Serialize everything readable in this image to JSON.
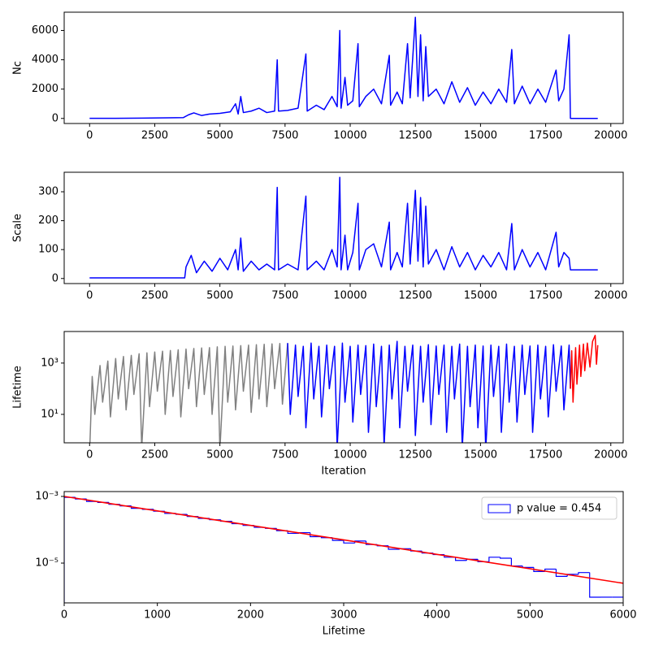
{
  "chart_data": [
    {
      "type": "line",
      "ylabel": "Nc",
      "xlim": [
        -975,
        20475
      ],
      "xticks": [
        0,
        2500,
        5000,
        7500,
        10000,
        12500,
        15000,
        17500,
        20000
      ],
      "ylim": [
        -345,
        7245
      ],
      "yticks": [
        0,
        2000,
        4000,
        6000
      ],
      "series": [
        {
          "color": "#0000ff",
          "x": [
            0,
            1000,
            2000,
            3000,
            3600,
            3800,
            4000,
            4300,
            4600,
            5000,
            5400,
            5600,
            5700,
            5800,
            5900,
            6200,
            6500,
            6800,
            7100,
            7200,
            7250,
            7600,
            8000,
            8300,
            8350,
            8700,
            9000,
            9300,
            9500,
            9600,
            9650,
            9800,
            9900,
            10100,
            10300,
            10350,
            10600,
            10900,
            11200,
            11500,
            11550,
            11800,
            12000,
            12200,
            12300,
            12500,
            12600,
            12700,
            12800,
            12900,
            13000,
            13300,
            13600,
            13900,
            14200,
            14500,
            14800,
            15100,
            15400,
            15700,
            16000,
            16200,
            16300,
            16600,
            16900,
            17200,
            17500,
            17900,
            18000,
            18200,
            18400,
            18450,
            19500
          ],
          "values": [
            5,
            10,
            20,
            40,
            60,
            250,
            380,
            200,
            300,
            350,
            450,
            1000,
            300,
            1500,
            400,
            500,
            700,
            400,
            500,
            4000,
            500,
            550,
            700,
            4400,
            500,
            900,
            600,
            1500,
            800,
            6000,
            700,
            2800,
            900,
            1200,
            5100,
            800,
            1500,
            2000,
            1000,
            4300,
            900,
            1800,
            1000,
            5100,
            1400,
            6900,
            1500,
            5700,
            1200,
            4900,
            1500,
            2000,
            1000,
            2500,
            1100,
            2100,
            900,
            1800,
            1000,
            2000,
            1100,
            4700,
            1000,
            2200,
            1000,
            2000,
            1100,
            3300,
            1200,
            2000,
            5700,
            0,
            0
          ]
        }
      ]
    },
    {
      "type": "line",
      "ylabel": "Scale",
      "xlim": [
        -975,
        20475
      ],
      "xticks": [
        0,
        2500,
        5000,
        7500,
        10000,
        12500,
        15000,
        17500,
        20000
      ],
      "ylim": [
        -17.5,
        367.5
      ],
      "yticks": [
        0,
        100,
        200,
        300
      ],
      "series": [
        {
          "color": "#0000ff",
          "x": [
            0,
            3650,
            3700,
            3900,
            4100,
            4400,
            4700,
            5000,
            5300,
            5600,
            5700,
            5800,
            5900,
            6200,
            6500,
            6800,
            7100,
            7200,
            7250,
            7600,
            8000,
            8300,
            8350,
            8700,
            9000,
            9300,
            9500,
            9600,
            9650,
            9800,
            9900,
            10100,
            10300,
            10350,
            10600,
            10900,
            11200,
            11500,
            11550,
            11800,
            12000,
            12200,
            12300,
            12500,
            12600,
            12700,
            12800,
            12900,
            13000,
            13300,
            13600,
            13900,
            14200,
            14500,
            14800,
            15100,
            15400,
            15700,
            16000,
            16200,
            16300,
            16600,
            16900,
            17200,
            17500,
            17900,
            18000,
            18200,
            18400,
            18450,
            19500
          ],
          "values": [
            2,
            2,
            40,
            80,
            20,
            60,
            25,
            70,
            30,
            100,
            30,
            140,
            25,
            60,
            30,
            50,
            30,
            315,
            30,
            50,
            30,
            285,
            30,
            60,
            30,
            100,
            40,
            350,
            30,
            150,
            30,
            90,
            260,
            30,
            100,
            120,
            40,
            195,
            30,
            90,
            40,
            260,
            50,
            305,
            60,
            280,
            40,
            250,
            50,
            100,
            30,
            110,
            40,
            90,
            30,
            80,
            40,
            90,
            30,
            190,
            30,
            100,
            40,
            90,
            30,
            160,
            40,
            90,
            70,
            30,
            30
          ]
        }
      ]
    },
    {
      "type": "line",
      "ylabel": "Lifetime",
      "xlabel": "Iteration",
      "ylog": true,
      "xlim": [
        -975,
        20475
      ],
      "xticks": [
        0,
        2500,
        5000,
        7500,
        10000,
        12500,
        15000,
        17500,
        20000
      ],
      "ylim": [
        0.78,
        17000
      ],
      "yticks": [
        {
          "value": 10,
          "label": "10¹"
        },
        {
          "value": 1000,
          "label": "10³"
        }
      ],
      "series": [
        {
          "color": "#808080",
          "x": [
            0,
            100,
            200,
            400,
            500,
            700,
            800,
            1000,
            1100,
            1300,
            1400,
            1600,
            1700,
            1900,
            2000,
            2200,
            2300,
            2500,
            2600,
            2800,
            2900,
            3100,
            3200,
            3400,
            3500,
            3700,
            3800,
            4000,
            4100,
            4300,
            4400,
            4600,
            4700,
            4900,
            5000,
            5200,
            5300,
            5500,
            5600,
            5800,
            5900,
            6100,
            6200,
            6400,
            6500,
            6700,
            6800,
            7000,
            7100,
            7300,
            7400,
            7600
          ],
          "values": [
            0.3,
            300,
            10,
            800,
            30,
            1200,
            8,
            1500,
            40,
            1800,
            15,
            2000,
            60,
            2300,
            0.5,
            2500,
            20,
            2700,
            80,
            2900,
            10,
            3100,
            50,
            3300,
            8,
            3500,
            100,
            3700,
            20,
            3900,
            60,
            4000,
            10,
            4300,
            0.4,
            4500,
            30,
            4600,
            15,
            4800,
            80,
            5000,
            12,
            5200,
            40,
            5400,
            20,
            5600,
            100,
            5800,
            25,
            6000
          ]
        },
        {
          "color": "#0000ff",
          "x": [
            7600,
            7700,
            7900,
            8000,
            8200,
            8300,
            8500,
            8600,
            8800,
            8900,
            9100,
            9200,
            9400,
            9500,
            9700,
            9800,
            10000,
            10100,
            10300,
            10400,
            10600,
            10700,
            10900,
            11000,
            11200,
            11300,
            11500,
            11600,
            11800,
            11900,
            12100,
            12200,
            12400,
            12500,
            12700,
            12800,
            13000,
            13100,
            13300,
            13400,
            13600,
            13700,
            13900,
            14000,
            14200,
            14300,
            14500,
            14600,
            14800,
            14900,
            15100,
            15200,
            15400,
            15500,
            15700,
            15800,
            16000,
            16100,
            16300,
            16400,
            16600,
            16700,
            16900,
            17000,
            17200,
            17300,
            17500,
            17600,
            17800,
            17900,
            18100,
            18200,
            18400,
            18450
          ],
          "values": [
            6000,
            10,
            5000,
            50,
            4500,
            3,
            6000,
            40,
            4500,
            8,
            5000,
            100,
            4500,
            0.5,
            6000,
            30,
            4500,
            5,
            5000,
            60,
            4800,
            2,
            5500,
            20,
            4500,
            0.6,
            5000,
            40,
            7000,
            3,
            4500,
            80,
            5000,
            1.5,
            4500,
            30,
            5200,
            4,
            4600,
            60,
            5000,
            2,
            4500,
            40,
            5500,
            0.5,
            4500,
            20,
            5000,
            3,
            4600,
            0.4,
            5000,
            50,
            4500,
            2,
            5500,
            30,
            4500,
            5,
            5000,
            60,
            4600,
            2,
            5000,
            40,
            4500,
            8,
            5200,
            80,
            4600,
            15,
            5000,
            100
          ]
        },
        {
          "color": "#ff0000",
          "x": [
            18450,
            18500,
            18550,
            18650,
            18700,
            18800,
            18850,
            18950,
            19000,
            19100,
            19200,
            19300,
            19400,
            19450,
            19500
          ],
          "values": [
            100,
            3000,
            30,
            4000,
            150,
            5000,
            300,
            5500,
            500,
            6000,
            700,
            7000,
            12000,
            900,
            5000
          ]
        }
      ]
    },
    {
      "type": "histogram",
      "xlabel": "Lifetime",
      "ylog": true,
      "xlim": [
        0,
        6000
      ],
      "xticks": [
        0,
        1000,
        2000,
        3000,
        4000,
        5000,
        6000
      ],
      "ylim": [
        6.4e-07,
        0.0014
      ],
      "yticks": [
        {
          "value": 0.001,
          "label": "10⁻³"
        },
        {
          "value": 1e-05,
          "label": "10⁻⁵"
        }
      ],
      "name": "p value = 0.454",
      "color": "#0000ff",
      "legend": "upper right",
      "bins": [
        0,
        120,
        240,
        360,
        480,
        600,
        720,
        840,
        960,
        1080,
        1200,
        1320,
        1440,
        1560,
        1680,
        1800,
        1920,
        2040,
        2160,
        2280,
        2400,
        2520,
        2640,
        2760,
        2880,
        3000,
        3120,
        3240,
        3360,
        3480,
        3600,
        3720,
        3840,
        3960,
        4080,
        4200,
        4320,
        4440,
        4560,
        4680,
        4800,
        4920,
        5040,
        5160,
        5280,
        5400,
        5520,
        5640,
        5760,
        5880,
        6000
      ],
      "values": [
        0.00094,
        0.00084,
        0.00071,
        0.00066,
        0.00058,
        0.00052,
        0.00044,
        0.00041,
        0.00036,
        0.00031,
        0.00029,
        0.00025,
        0.00022,
        0.0002,
        0.00018,
        0.000152,
        0.000135,
        0.000118,
        0.00011,
        9.4e-05,
        7.8e-05,
        8.2e-05,
        6.2e-05,
        5.8e-05,
        4.8e-05,
        4e-05,
        4.6e-05,
        3.6e-05,
        3.3e-05,
        2.6e-05,
        2.7e-05,
        2.3e-05,
        2e-05,
        1.8e-05,
        1.5e-05,
        1.2e-05,
        1.3e-05,
        1.1e-05,
        1.5e-05,
        1.4e-05,
        8.2e-06,
        7.4e-06,
        5.6e-06,
        6.6e-06,
        4e-06,
        4.6e-06,
        5.2e-06,
        9.5e-07,
        9.5e-07,
        9.5e-07
      ],
      "fit": {
        "color": "#ff0000",
        "x": [
          0,
          6000
        ],
        "values": [
          0.001,
          2.48e-06
        ]
      }
    }
  ]
}
